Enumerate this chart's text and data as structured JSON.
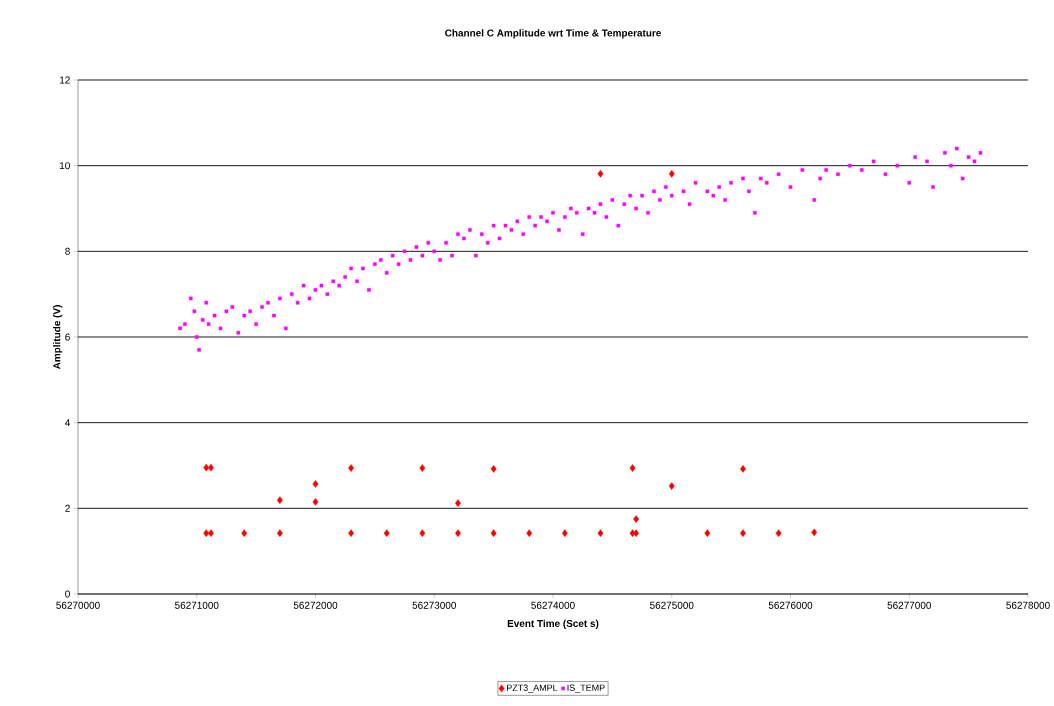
{
  "chart_data": {
    "type": "scatter",
    "title": "Channel C Amplitude wrt Time & Temperature",
    "xlabel": "Event Time (Scet s)",
    "ylabel": "Amplitude (V)",
    "xlim": [
      56270000,
      56278000
    ],
    "xticks": [
      56270000,
      56271000,
      56272000,
      56273000,
      56274000,
      56275000,
      56276000,
      56277000,
      56278000
    ],
    "ylim": [
      0,
      12
    ],
    "yticks": [
      0,
      2,
      4,
      6,
      8,
      10,
      12
    ],
    "grid": "y",
    "legend": "bottom",
    "series": [
      {
        "name": "PZT3_AMPL",
        "color": "#ff0000",
        "marker": "diamond",
        "x": [
          56271080,
          56271120,
          56271080,
          56271120,
          56271400,
          56271700,
          56271700,
          56272000,
          56272000,
          56272300,
          56272300,
          56272600,
          56272900,
          56272900,
          56273200,
          56273200,
          56273500,
          56273500,
          56273800,
          56274100,
          56274400,
          56274400,
          56274670,
          56274670,
          56274700,
          56274700,
          56275000,
          56275000,
          56275300,
          56275600,
          56275600,
          56275900,
          56276200
        ],
        "values": [
          2.95,
          2.95,
          1.42,
          1.42,
          1.42,
          2.19,
          1.42,
          2.57,
          2.15,
          2.94,
          1.42,
          1.42,
          2.94,
          1.42,
          2.12,
          1.42,
          2.92,
          1.42,
          1.42,
          1.42,
          9.81,
          1.42,
          2.94,
          1.42,
          1.42,
          1.75,
          9.81,
          2.52,
          1.42,
          2.92,
          1.42,
          1.42,
          1.44
        ]
      },
      {
        "name": "IS_TEMP",
        "color": "#ff00ff",
        "marker": "square",
        "x": [
          56270860,
          56270900,
          56270950,
          56270980,
          56271000,
          56271020,
          56271050,
          56271080,
          56271100,
          56271150,
          56271200,
          56271250,
          56271300,
          56271350,
          56271400,
          56271450,
          56271500,
          56271550,
          56271600,
          56271650,
          56271700,
          56271750,
          56271800,
          56271850,
          56271900,
          56271950,
          56272000,
          56272050,
          56272100,
          56272150,
          56272200,
          56272250,
          56272300,
          56272350,
          56272400,
          56272450,
          56272500,
          56272550,
          56272600,
          56272650,
          56272700,
          56272750,
          56272800,
          56272850,
          56272900,
          56272950,
          56273000,
          56273050,
          56273100,
          56273150,
          56273200,
          56273250,
          56273300,
          56273350,
          56273400,
          56273450,
          56273500,
          56273550,
          56273600,
          56273650,
          56273700,
          56273750,
          56273800,
          56273850,
          56273900,
          56273950,
          56274000,
          56274050,
          56274100,
          56274150,
          56274200,
          56274250,
          56274300,
          56274350,
          56274400,
          56274450,
          56274500,
          56274550,
          56274600,
          56274650,
          56274700,
          56274750,
          56274800,
          56274850,
          56274900,
          56274950,
          56275000,
          56275100,
          56275150,
          56275200,
          56275300,
          56275350,
          56275400,
          56275450,
          56275500,
          56275600,
          56275650,
          56275700,
          56275750,
          56275800,
          56275900,
          56276000,
          56276100,
          56276200,
          56276250,
          56276300,
          56276400,
          56276500,
          56276600,
          56276700,
          56276800,
          56276900,
          56277000,
          56277050,
          56277150,
          56277200,
          56277300,
          56277350,
          56277400,
          56277450,
          56277500,
          56277550,
          56277600
        ],
        "values": [
          6.2,
          6.3,
          6.9,
          6.6,
          6.0,
          5.7,
          6.4,
          6.8,
          6.3,
          6.5,
          6.2,
          6.6,
          6.7,
          6.1,
          6.5,
          6.6,
          6.3,
          6.7,
          6.8,
          6.5,
          6.9,
          6.2,
          7.0,
          6.8,
          7.2,
          6.9,
          7.1,
          7.2,
          7.0,
          7.3,
          7.2,
          7.4,
          7.6,
          7.3,
          7.6,
          7.1,
          7.7,
          7.8,
          7.5,
          7.9,
          7.7,
          8.0,
          7.8,
          8.1,
          7.9,
          8.2,
          8.0,
          7.8,
          8.2,
          7.9,
          8.4,
          8.3,
          8.5,
          7.9,
          8.4,
          8.2,
          8.6,
          8.3,
          8.6,
          8.5,
          8.7,
          8.4,
          8.8,
          8.6,
          8.8,
          8.7,
          8.9,
          8.5,
          8.8,
          9.0,
          8.9,
          8.4,
          9.0,
          8.9,
          9.1,
          8.8,
          9.2,
          8.6,
          9.1,
          9.3,
          9.0,
          9.3,
          8.9,
          9.4,
          9.2,
          9.5,
          9.3,
          9.4,
          9.1,
          9.6,
          9.4,
          9.3,
          9.5,
          9.2,
          9.6,
          9.7,
          9.4,
          8.9,
          9.7,
          9.6,
          9.8,
          9.5,
          9.9,
          9.2,
          9.7,
          9.9,
          9.8,
          10.0,
          9.9,
          10.1,
          9.8,
          10.0,
          9.6,
          10.2,
          10.1,
          9.5,
          10.3,
          10.0,
          10.4,
          9.7,
          10.2,
          10.1,
          10.3
        ]
      }
    ]
  }
}
